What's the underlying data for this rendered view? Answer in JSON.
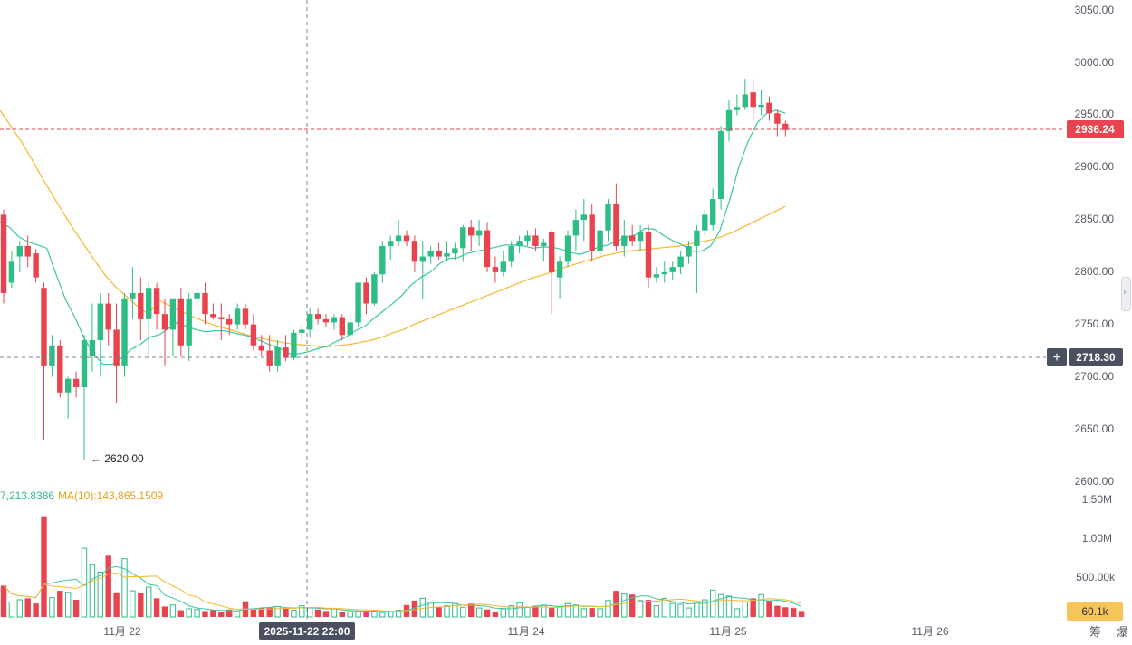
{
  "chart_data": [
    {
      "type": "candlestick",
      "price_axis_ticks": [
        "3050.00",
        "3000.00",
        "2950.00",
        "2900.00",
        "2850.00",
        "2800.00",
        "2750.00",
        "2700.00",
        "2650.00",
        "2600.00"
      ],
      "time_axis_ticks": [
        "11月 22",
        "11月 24",
        "11月 25",
        "11月 26"
      ],
      "ylim": [
        2600,
        3050
      ],
      "grid": false,
      "current_price": "2936.24",
      "crosshair_price": "2718.30",
      "crosshair_time": "2025-11-22 22:00",
      "low_marker": "← 2620.00",
      "ma_short": [
        2848,
        2843,
        2834,
        2829,
        2826,
        2823,
        2798,
        2774,
        2757,
        2737,
        2722,
        2712,
        2712,
        2718,
        2726,
        2731,
        2738,
        2740,
        2746,
        2752,
        2748,
        2745,
        2743,
        2744,
        2744,
        2742,
        2740,
        2738,
        2734,
        2730,
        2727,
        2722,
        2722,
        2724,
        2727,
        2729,
        2734,
        2738,
        2744,
        2748,
        2756,
        2763,
        2770,
        2778,
        2788,
        2795,
        2800,
        2808,
        2813,
        2814,
        2818,
        2820,
        2822,
        2824,
        2826,
        2826,
        2825,
        2823,
        2824,
        2824,
        2822,
        2819,
        2817,
        2820,
        2824,
        2826,
        2830,
        2833,
        2836,
        2842,
        2841,
        2835,
        2830,
        2826,
        2820,
        2820,
        2825,
        2840,
        2868,
        2900,
        2925,
        2943,
        2952,
        2955,
        2952
      ],
      "ma_long": [
        2955,
        2940,
        2925,
        2908,
        2890,
        2873,
        2856,
        2840,
        2825,
        2810,
        2796,
        2785,
        2776,
        2767,
        2760,
        2773,
        2768,
        2763,
        2758,
        2754,
        2750,
        2747,
        2744,
        2741,
        2738,
        2736,
        2734,
        2732,
        2731,
        2730,
        2729,
        2729,
        2730,
        2731,
        2733,
        2735,
        2738,
        2742,
        2745,
        2750,
        2754,
        2758,
        2762,
        2766,
        2770,
        2774,
        2778,
        2782,
        2786,
        2790,
        2794,
        2797,
        2800,
        2804,
        2807,
        2810,
        2813,
        2816,
        2818,
        2820,
        2821,
        2822,
        2823,
        2824,
        2825,
        2827,
        2829,
        2831,
        2834,
        2838,
        2843,
        2848,
        2853,
        2858,
        2863
      ],
      "candles": [
        {
          "o": 2855,
          "h": 2860,
          "l": 2770,
          "c": 2780
        },
        {
          "o": 2790,
          "h": 2820,
          "l": 2785,
          "c": 2810
        },
        {
          "o": 2815,
          "h": 2830,
          "l": 2800,
          "c": 2825
        },
        {
          "o": 2825,
          "h": 2835,
          "l": 2805,
          "c": 2815
        },
        {
          "o": 2818,
          "h": 2822,
          "l": 2790,
          "c": 2795
        },
        {
          "o": 2785,
          "h": 2790,
          "l": 2640,
          "c": 2710
        },
        {
          "o": 2710,
          "h": 2740,
          "l": 2700,
          "c": 2730
        },
        {
          "o": 2730,
          "h": 2735,
          "l": 2680,
          "c": 2685
        },
        {
          "o": 2685,
          "h": 2700,
          "l": 2660,
          "c": 2698
        },
        {
          "o": 2698,
          "h": 2705,
          "l": 2680,
          "c": 2690
        },
        {
          "o": 2690,
          "h": 2740,
          "l": 2620,
          "c": 2735
        },
        {
          "o": 2720,
          "h": 2770,
          "l": 2705,
          "c": 2735
        },
        {
          "o": 2735,
          "h": 2780,
          "l": 2700,
          "c": 2770
        },
        {
          "o": 2770,
          "h": 2780,
          "l": 2730,
          "c": 2745
        },
        {
          "o": 2745,
          "h": 2770,
          "l": 2675,
          "c": 2710
        },
        {
          "o": 2710,
          "h": 2780,
          "l": 2700,
          "c": 2775
        },
        {
          "o": 2775,
          "h": 2805,
          "l": 2755,
          "c": 2780
        },
        {
          "o": 2780,
          "h": 2795,
          "l": 2735,
          "c": 2755
        },
        {
          "o": 2755,
          "h": 2790,
          "l": 2720,
          "c": 2785
        },
        {
          "o": 2785,
          "h": 2790,
          "l": 2745,
          "c": 2760
        },
        {
          "o": 2760,
          "h": 2775,
          "l": 2710,
          "c": 2745
        },
        {
          "o": 2745,
          "h": 2775,
          "l": 2720,
          "c": 2775
        },
        {
          "o": 2775,
          "h": 2785,
          "l": 2720,
          "c": 2730
        },
        {
          "o": 2730,
          "h": 2780,
          "l": 2715,
          "c": 2775
        },
        {
          "o": 2775,
          "h": 2785,
          "l": 2765,
          "c": 2780
        },
        {
          "o": 2780,
          "h": 2790,
          "l": 2750,
          "c": 2760
        },
        {
          "o": 2760,
          "h": 2770,
          "l": 2755,
          "c": 2757
        },
        {
          "o": 2757,
          "h": 2770,
          "l": 2735,
          "c": 2755
        },
        {
          "o": 2755,
          "h": 2760,
          "l": 2740,
          "c": 2750
        },
        {
          "o": 2750,
          "h": 2770,
          "l": 2745,
          "c": 2765
        },
        {
          "o": 2765,
          "h": 2770,
          "l": 2745,
          "c": 2750
        },
        {
          "o": 2750,
          "h": 2760,
          "l": 2725,
          "c": 2730
        },
        {
          "o": 2730,
          "h": 2740,
          "l": 2720,
          "c": 2725
        },
        {
          "o": 2725,
          "h": 2740,
          "l": 2705,
          "c": 2710
        },
        {
          "o": 2710,
          "h": 2735,
          "l": 2705,
          "c": 2728
        },
        {
          "o": 2728,
          "h": 2740,
          "l": 2715,
          "c": 2718
        },
        {
          "o": 2718,
          "h": 2745,
          "l": 2716,
          "c": 2742
        },
        {
          "o": 2742,
          "h": 2750,
          "l": 2735,
          "c": 2745
        },
        {
          "o": 2745,
          "h": 2765,
          "l": 2738,
          "c": 2760
        },
        {
          "o": 2760,
          "h": 2765,
          "l": 2750,
          "c": 2755
        },
        {
          "o": 2755,
          "h": 2760,
          "l": 2748,
          "c": 2752
        },
        {
          "o": 2752,
          "h": 2760,
          "l": 2745,
          "c": 2757
        },
        {
          "o": 2757,
          "h": 2760,
          "l": 2735,
          "c": 2740
        },
        {
          "o": 2740,
          "h": 2760,
          "l": 2735,
          "c": 2752
        },
        {
          "o": 2752,
          "h": 2790,
          "l": 2748,
          "c": 2790
        },
        {
          "o": 2790,
          "h": 2795,
          "l": 2760,
          "c": 2770
        },
        {
          "o": 2770,
          "h": 2800,
          "l": 2768,
          "c": 2798
        },
        {
          "o": 2798,
          "h": 2830,
          "l": 2790,
          "c": 2825
        },
        {
          "o": 2825,
          "h": 2835,
          "l": 2812,
          "c": 2830
        },
        {
          "o": 2830,
          "h": 2850,
          "l": 2825,
          "c": 2835
        },
        {
          "o": 2835,
          "h": 2840,
          "l": 2825,
          "c": 2830
        },
        {
          "o": 2830,
          "h": 2835,
          "l": 2800,
          "c": 2810
        },
        {
          "o": 2810,
          "h": 2830,
          "l": 2775,
          "c": 2815
        },
        {
          "o": 2815,
          "h": 2825,
          "l": 2808,
          "c": 2820
        },
        {
          "o": 2820,
          "h": 2828,
          "l": 2812,
          "c": 2815
        },
        {
          "o": 2815,
          "h": 2830,
          "l": 2810,
          "c": 2818
        },
        {
          "o": 2818,
          "h": 2828,
          "l": 2812,
          "c": 2823
        },
        {
          "o": 2823,
          "h": 2845,
          "l": 2810,
          "c": 2843
        },
        {
          "o": 2843,
          "h": 2850,
          "l": 2820,
          "c": 2835
        },
        {
          "o": 2835,
          "h": 2850,
          "l": 2825,
          "c": 2840
        },
        {
          "o": 2840,
          "h": 2848,
          "l": 2800,
          "c": 2805
        },
        {
          "o": 2805,
          "h": 2815,
          "l": 2790,
          "c": 2800
        },
        {
          "o": 2800,
          "h": 2820,
          "l": 2796,
          "c": 2810
        },
        {
          "o": 2810,
          "h": 2830,
          "l": 2805,
          "c": 2825
        },
        {
          "o": 2825,
          "h": 2835,
          "l": 2818,
          "c": 2830
        },
        {
          "o": 2830,
          "h": 2840,
          "l": 2825,
          "c": 2835
        },
        {
          "o": 2835,
          "h": 2842,
          "l": 2820,
          "c": 2825
        },
        {
          "o": 2825,
          "h": 2832,
          "l": 2810,
          "c": 2828
        },
        {
          "o": 2838,
          "h": 2840,
          "l": 2760,
          "c": 2800
        },
        {
          "o": 2795,
          "h": 2815,
          "l": 2775,
          "c": 2810
        },
        {
          "o": 2810,
          "h": 2840,
          "l": 2805,
          "c": 2835
        },
        {
          "o": 2835,
          "h": 2860,
          "l": 2820,
          "c": 2850
        },
        {
          "o": 2850,
          "h": 2870,
          "l": 2830,
          "c": 2855
        },
        {
          "o": 2855,
          "h": 2865,
          "l": 2810,
          "c": 2820
        },
        {
          "o": 2820,
          "h": 2845,
          "l": 2815,
          "c": 2840
        },
        {
          "o": 2840,
          "h": 2870,
          "l": 2830,
          "c": 2865
        },
        {
          "o": 2865,
          "h": 2885,
          "l": 2820,
          "c": 2825
        },
        {
          "o": 2825,
          "h": 2850,
          "l": 2815,
          "c": 2835
        },
        {
          "o": 2835,
          "h": 2845,
          "l": 2825,
          "c": 2830
        },
        {
          "o": 2830,
          "h": 2845,
          "l": 2820,
          "c": 2838
        },
        {
          "o": 2838,
          "h": 2845,
          "l": 2785,
          "c": 2795
        },
        {
          "o": 2795,
          "h": 2805,
          "l": 2790,
          "c": 2798
        },
        {
          "o": 2798,
          "h": 2810,
          "l": 2790,
          "c": 2800
        },
        {
          "o": 2800,
          "h": 2810,
          "l": 2792,
          "c": 2805
        },
        {
          "o": 2805,
          "h": 2820,
          "l": 2798,
          "c": 2815
        },
        {
          "o": 2815,
          "h": 2830,
          "l": 2808,
          "c": 2825
        },
        {
          "o": 2825,
          "h": 2845,
          "l": 2780,
          "c": 2840
        },
        {
          "o": 2840,
          "h": 2860,
          "l": 2835,
          "c": 2855
        },
        {
          "o": 2845,
          "h": 2880,
          "l": 2840,
          "c": 2870
        },
        {
          "o": 2870,
          "h": 2940,
          "l": 2860,
          "c": 2935
        },
        {
          "o": 2935,
          "h": 2965,
          "l": 2925,
          "c": 2955
        },
        {
          "o": 2955,
          "h": 2970,
          "l": 2950,
          "c": 2958
        },
        {
          "o": 2958,
          "h": 2985,
          "l": 2955,
          "c": 2970
        },
        {
          "o": 2972,
          "h": 2985,
          "l": 2945,
          "c": 2958
        },
        {
          "o": 2958,
          "h": 2975,
          "l": 2950,
          "c": 2960
        },
        {
          "o": 2962,
          "h": 2968,
          "l": 2945,
          "c": 2952
        },
        {
          "o": 2952,
          "h": 2955,
          "l": 2930,
          "c": 2942
        },
        {
          "o": 2942,
          "h": 2945,
          "l": 2930,
          "c": 2936
        }
      ]
    },
    {
      "type": "bar",
      "title": "volume",
      "legend_short": "7,213.8386",
      "legend_long": "MA(10):143,865.1509",
      "y_ticks": [
        "1.50M",
        "1.00M",
        "500.00k"
      ],
      "ylim": [
        0,
        1600000
      ],
      "current_volume": "60.1k",
      "values": [
        420000,
        200000,
        230000,
        250000,
        180000,
        1350000,
        260000,
        350000,
        330000,
        230000,
        920000,
        700000,
        600000,
        820000,
        330000,
        780000,
        350000,
        320000,
        400000,
        250000,
        140000,
        160000,
        90000,
        110000,
        100000,
        80000,
        90000,
        60000,
        100000,
        70000,
        210000,
        110000,
        120000,
        130000,
        140000,
        120000,
        90000,
        150000,
        120000,
        100000,
        80000,
        110000,
        70000,
        70000,
        75000,
        70000,
        80000,
        60000,
        70000,
        90000,
        160000,
        220000,
        250000,
        200000,
        130000,
        150000,
        180000,
        130000,
        180000,
        120000,
        100000,
        60000,
        110000,
        150000,
        190000,
        130000,
        150000,
        160000,
        120000,
        140000,
        180000,
        160000,
        110000,
        120000,
        110000,
        220000,
        350000,
        310000,
        300000,
        220000,
        230000,
        150000,
        250000,
        180000,
        170000,
        120000,
        200000,
        230000,
        360000,
        300000,
        280000,
        110000,
        200000,
        250000,
        300000,
        220000,
        150000,
        130000,
        120000,
        80000
      ]
    }
  ],
  "colors": {
    "up": "#2ebd85",
    "down": "#e8434e",
    "ma_short": "#3cc7a5",
    "ma_long": "#f6b82e",
    "crosshair_label_bg": "#4b5061"
  },
  "right_icon": "drag-handle-icon",
  "corner_text": "筹 爆"
}
